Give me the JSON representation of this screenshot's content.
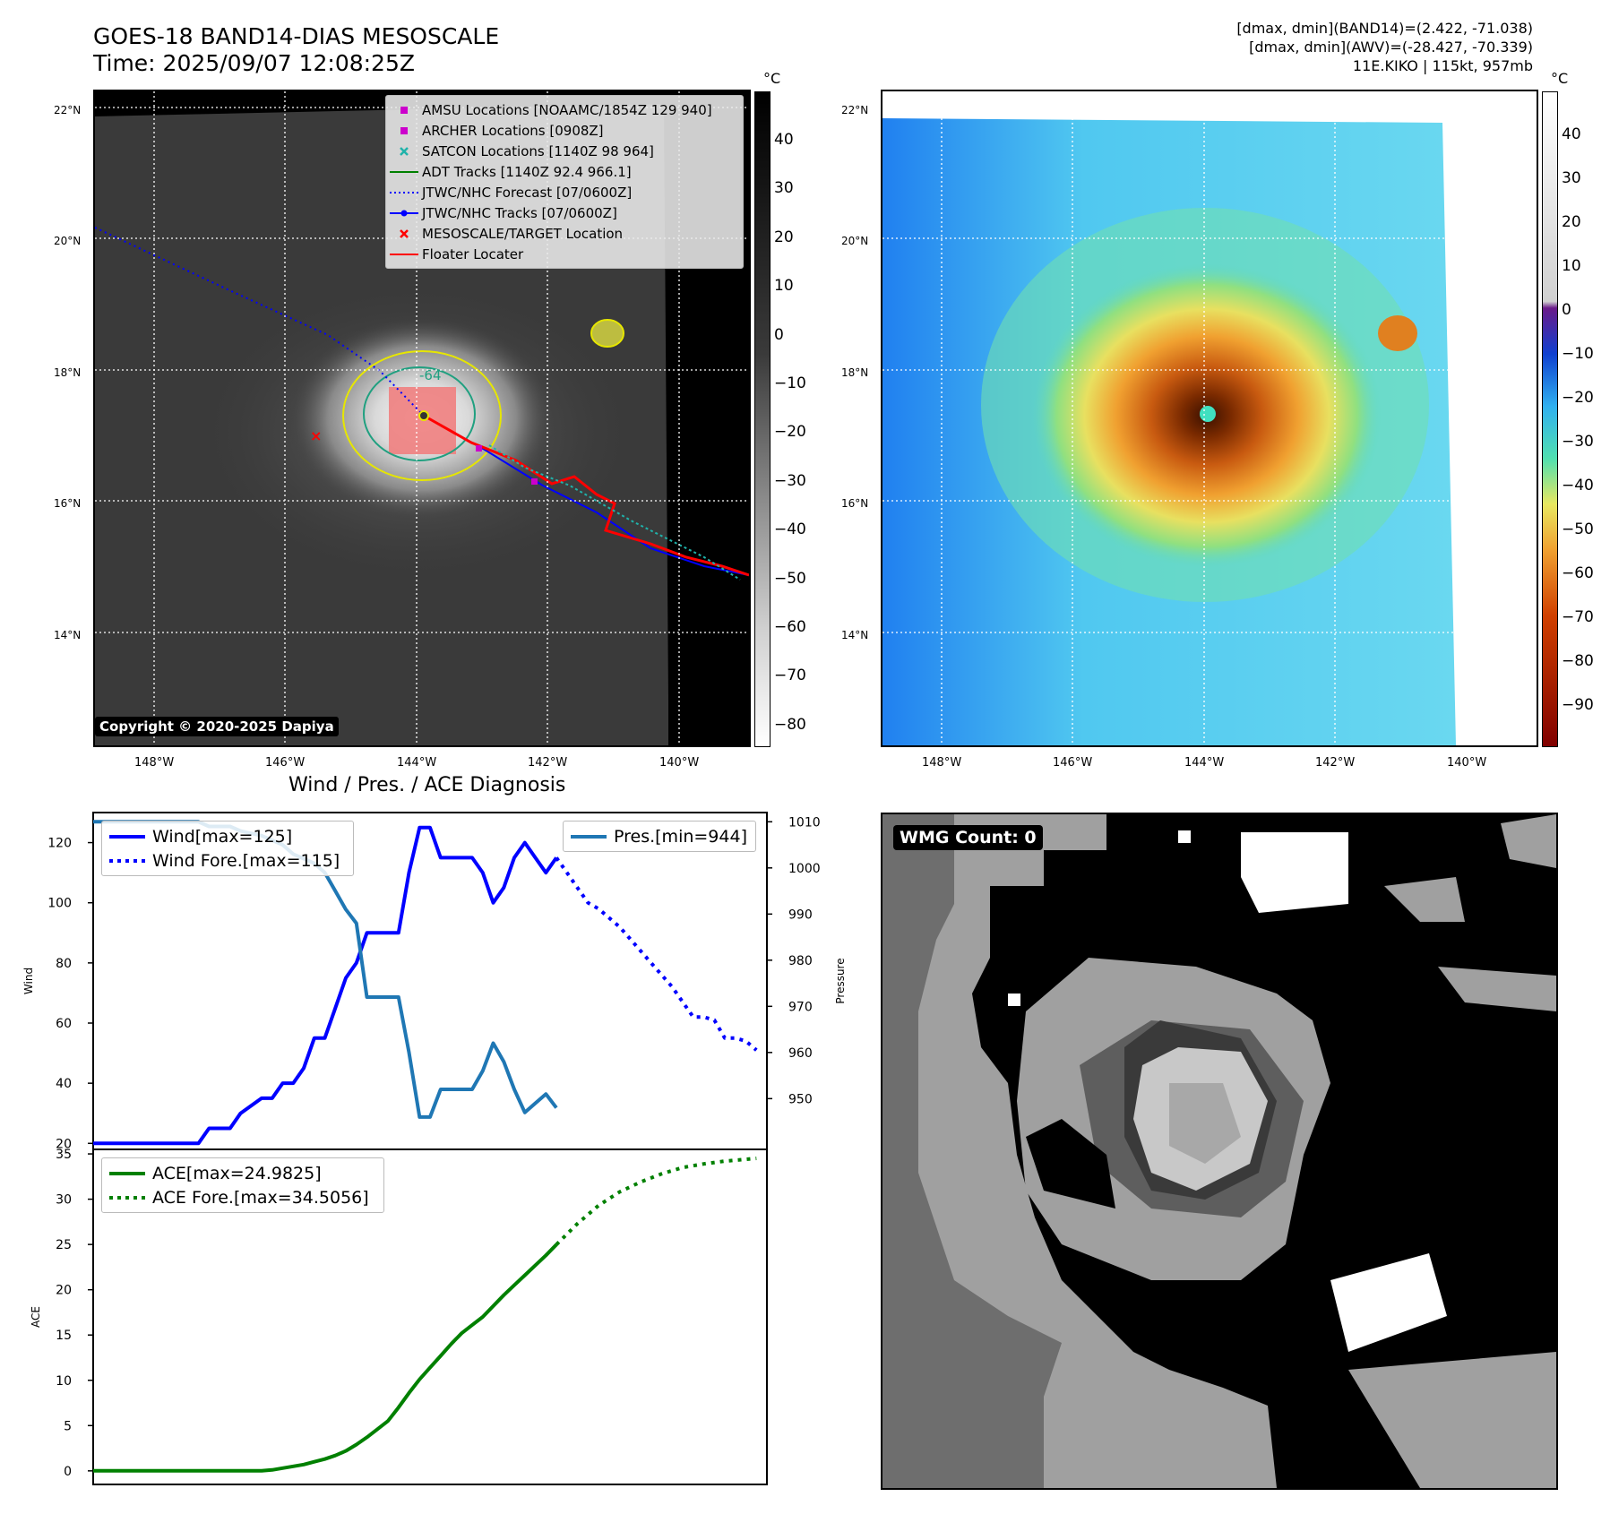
{
  "header": {
    "title": "GOES-18 BAND14-DIAS MESOSCALE",
    "time": "Time: 2025/09/07 12:08:25Z",
    "stats_band14": "[dmax, dmin](BAND14)=(2.422, -71.038)",
    "stats_awv": "[dmax, dmin](AWV)=(-28.427, -70.339)",
    "storm": "11E.KIKO | 115kt, 957mb"
  },
  "ir_panel": {
    "lat_labels": [
      "22°N",
      "20°N",
      "18°N",
      "16°N",
      "14°N"
    ],
    "lon_labels": [
      "148°W",
      "146°W",
      "144°W",
      "142°W",
      "140°W"
    ],
    "copyright": "Copyright © 2020-2025 Dapiya",
    "contour_label": "-64",
    "colorbar_unit": "°C",
    "colorbar_ticks": [
      "40",
      "30",
      "20",
      "10",
      "0",
      "−10",
      "−20",
      "−30",
      "−40",
      "−50",
      "−60",
      "−70",
      "−80"
    ],
    "legend": [
      {
        "label": "AMSU Locations [NOAAMC/1854Z 129 940]",
        "icon": "square-marker",
        "color": "#cc00cc"
      },
      {
        "label": "ARCHER Locations [0908Z]",
        "icon": "square-marker",
        "color": "#cc00cc"
      },
      {
        "label": "SATCON Locations [1140Z 98 964]",
        "icon": "x-marker",
        "color": "#20b2aa"
      },
      {
        "label": "ADT Tracks [1140Z 92.4 966.1]",
        "icon": "solid-line",
        "color": "#008000"
      },
      {
        "label": "JTWC/NHC Forecast [07/0600Z]",
        "icon": "dotted-line",
        "color": "#0000ff"
      },
      {
        "label": "JTWC/NHC Tracks [07/0600Z]",
        "icon": "line-dot",
        "color": "#0000ff"
      },
      {
        "label": "MESOSCALE/TARGET Location",
        "icon": "x-marker",
        "color": "#ff0000"
      },
      {
        "label": "Floater Locater",
        "icon": "solid-line",
        "color": "#ff0000"
      }
    ]
  },
  "color_panel": {
    "lat_labels": [
      "22°N",
      "20°N",
      "18°N",
      "16°N",
      "14°N"
    ],
    "lon_labels": [
      "148°W",
      "146°W",
      "144°W",
      "142°W",
      "140°W"
    ],
    "colorbar_unit": "°C",
    "colorbar_ticks": [
      "40",
      "30",
      "20",
      "10",
      "0",
      "−10",
      "−20",
      "−30",
      "−40",
      "−50",
      "−60",
      "−70",
      "−80",
      "−90"
    ]
  },
  "chart_data": [
    {
      "type": "line",
      "title": "Wind / Pres. / ACE Diagnosis",
      "ylabel": "Wind",
      "y2label": "Pressure",
      "ylim": [
        18,
        130
      ],
      "yticks": [
        20,
        40,
        60,
        80,
        100,
        120
      ],
      "y2lim": [
        939,
        1012
      ],
      "y2ticks": [
        950,
        960,
        970,
        980,
        990,
        1000,
        1010
      ],
      "xlim": [
        0,
        64
      ],
      "series": [
        {
          "name": "Wind[max=125]",
          "axis": "left",
          "color": "#0000ff",
          "style": "solid",
          "x": [
            0,
            10,
            11,
            13,
            14,
            16,
            17,
            18,
            19,
            20,
            21,
            22,
            23,
            24,
            25,
            26,
            27,
            29,
            30,
            31,
            32,
            33,
            34,
            36,
            37,
            38,
            39,
            40,
            41,
            42,
            43,
            44
          ],
          "values": [
            20,
            20,
            25,
            25,
            30,
            35,
            35,
            40,
            40,
            45,
            55,
            55,
            65,
            75,
            80,
            90,
            90,
            90,
            110,
            125,
            125,
            115,
            115,
            115,
            110,
            100,
            105,
            115,
            120,
            115,
            110,
            115
          ]
        },
        {
          "name": "Wind Fore.[max=115]",
          "axis": "left",
          "color": "#0000ff",
          "style": "dotted",
          "x": [
            44,
            45,
            46,
            47,
            48,
            49,
            50,
            51,
            52,
            53,
            54,
            55,
            56,
            57,
            58,
            59,
            60,
            61,
            62,
            63
          ],
          "values": [
            115,
            110,
            105,
            100,
            98,
            95,
            92,
            88,
            84,
            80,
            76,
            72,
            67,
            62,
            62,
            61,
            55,
            55,
            54,
            51
          ]
        },
        {
          "name": "Pres.[min=944]",
          "axis": "right",
          "color": "#1f77b4",
          "style": "solid",
          "x": [
            0,
            10,
            11,
            13,
            14,
            16,
            17,
            18,
            19,
            20,
            21,
            22,
            23,
            24,
            25,
            26,
            27,
            29,
            30,
            31,
            32,
            33,
            34,
            36,
            37,
            38,
            39,
            40,
            41,
            42,
            43,
            44
          ],
          "values": [
            1010,
            1010,
            1009,
            1009,
            1008,
            1007,
            1006,
            1005,
            1003,
            1002,
            1001,
            999,
            995,
            991,
            988,
            972,
            972,
            972,
            960,
            946,
            946,
            952,
            952,
            952,
            956,
            962,
            958,
            952,
            947,
            949,
            951,
            948
          ]
        },
        {
          "name": "ACE[max=24.9825]",
          "axis": "ace",
          "color": "#008000",
          "style": "solid",
          "x": [
            0,
            10,
            11,
            12,
            13,
            14,
            15,
            16,
            17,
            18,
            19,
            20,
            21,
            22,
            23,
            24,
            25,
            26,
            27,
            28,
            29,
            30,
            31,
            32,
            33,
            34,
            35,
            36,
            37,
            38,
            39,
            40,
            41,
            42,
            43,
            44
          ],
          "values": [
            0,
            0,
            0,
            0,
            0,
            0,
            0,
            0,
            0.1,
            0.3,
            0.5,
            0.7,
            1.0,
            1.3,
            1.7,
            2.2,
            2.9,
            3.7,
            4.6,
            5.5,
            7.0,
            8.6,
            10.1,
            11.4,
            12.7,
            14.0,
            15.2,
            16.1,
            17.0,
            18.2,
            19.4,
            20.5,
            21.6,
            22.7,
            23.8,
            24.98
          ]
        },
        {
          "name": "ACE Fore.[max=34.5056]",
          "axis": "ace",
          "color": "#008000",
          "style": "dotted",
          "x": [
            44,
            46,
            48,
            50,
            52,
            54,
            56,
            58,
            60,
            62,
            63
          ],
          "values": [
            24.98,
            27.3,
            29.3,
            30.8,
            31.9,
            32.8,
            33.5,
            33.9,
            34.2,
            34.4,
            34.51
          ]
        }
      ],
      "ace_ylim": [
        -1.5,
        35.5
      ],
      "ace_yticks": [
        0,
        5,
        10,
        15,
        20,
        25,
        30,
        35
      ],
      "ace_ylabel": "ACE"
    }
  ],
  "wmg_panel": {
    "label": "WMG Count: 0"
  }
}
